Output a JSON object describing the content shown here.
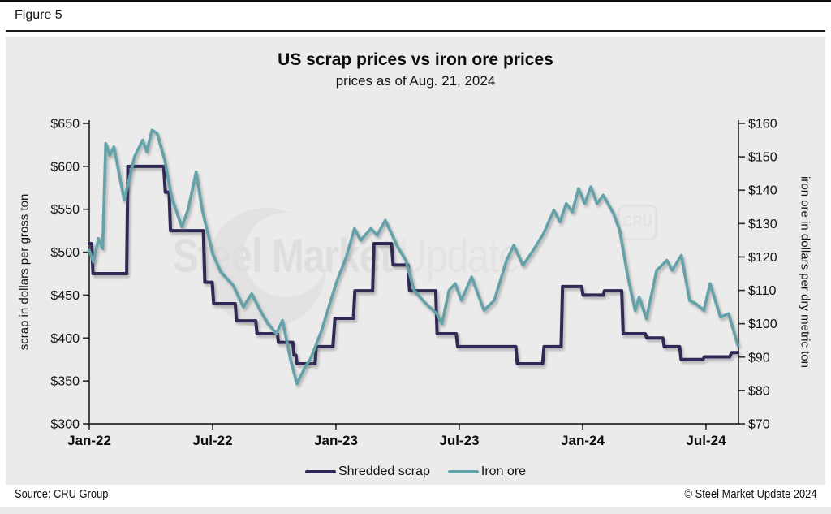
{
  "window": {
    "figure_label": "Figure 5"
  },
  "footer": {
    "source": "Source: CRU Group",
    "copyright": "© Steel Market Update 2024"
  },
  "watermark": {
    "text_bold": "Steel Market",
    "text_light": "Update",
    "badge": "CRU"
  },
  "chart_data": {
    "type": "line",
    "title": "US scrap prices vs iron ore prices",
    "subtitle": "prices as of Aug. 21, 2024",
    "x_unit": "months since Jan-2022",
    "x_axis": {
      "tick_labels": [
        "Jan-22",
        "Jul-22",
        "Jan-23",
        "Jul-23",
        "Jan-24",
        "Jul-24"
      ],
      "tick_months": [
        0,
        6,
        12,
        18,
        24,
        30
      ],
      "range_months": [
        0,
        31.6
      ]
    },
    "left_axis": {
      "label": "scrap in dollars per gross ton",
      "tick_labels": [
        "$300",
        "$350",
        "$400",
        "$450",
        "$500",
        "$550",
        "$600",
        "$650"
      ],
      "tick_values": [
        300,
        350,
        400,
        450,
        500,
        550,
        600,
        650
      ],
      "ylim": [
        300,
        650
      ]
    },
    "right_axis": {
      "label": "iron ore in dollars per dry metric ton",
      "tick_labels": [
        "$70",
        "$80",
        "$90",
        "$100",
        "$110",
        "$120",
        "$130",
        "$140",
        "$150",
        "$160"
      ],
      "tick_values": [
        70,
        80,
        90,
        100,
        110,
        120,
        130,
        140,
        150,
        160
      ],
      "ylim": [
        70,
        160
      ]
    },
    "grid": false,
    "legend_position": "bottom-center",
    "series": [
      {
        "name": "Shredded scrap",
        "axis": "left",
        "color": "#2e2a55",
        "stroke_width": 4,
        "points": [
          [
            0,
            510
          ],
          [
            0.12,
            510
          ],
          [
            0.18,
            475
          ],
          [
            1.82,
            475
          ],
          [
            1.88,
            600
          ],
          [
            3.62,
            600
          ],
          [
            3.7,
            570
          ],
          [
            3.88,
            570
          ],
          [
            3.95,
            525
          ],
          [
            5.55,
            525
          ],
          [
            5.62,
            465
          ],
          [
            5.98,
            465
          ],
          [
            6.05,
            440
          ],
          [
            7.1,
            440
          ],
          [
            7.16,
            420
          ],
          [
            8.1,
            420
          ],
          [
            8.16,
            405
          ],
          [
            9.15,
            405
          ],
          [
            9.2,
            395
          ],
          [
            9.9,
            395
          ],
          [
            9.96,
            380
          ],
          [
            10.05,
            380
          ],
          [
            10.1,
            370
          ],
          [
            10.98,
            370
          ],
          [
            11.04,
            390
          ],
          [
            11.85,
            390
          ],
          [
            11.95,
            423
          ],
          [
            12.85,
            423
          ],
          [
            12.92,
            455
          ],
          [
            13.78,
            455
          ],
          [
            13.85,
            510
          ],
          [
            14.7,
            510
          ],
          [
            14.78,
            485
          ],
          [
            15.5,
            485
          ],
          [
            15.58,
            455
          ],
          [
            16.85,
            455
          ],
          [
            16.92,
            405
          ],
          [
            17.85,
            405
          ],
          [
            17.92,
            390
          ],
          [
            20.75,
            390
          ],
          [
            20.82,
            370
          ],
          [
            22.05,
            370
          ],
          [
            22.12,
            390
          ],
          [
            22.95,
            390
          ],
          [
            23.02,
            460
          ],
          [
            23.95,
            460
          ],
          [
            24.02,
            450
          ],
          [
            25.0,
            450
          ],
          [
            25.06,
            455
          ],
          [
            25.9,
            455
          ],
          [
            25.97,
            405
          ],
          [
            27.05,
            405
          ],
          [
            27.12,
            400
          ],
          [
            27.9,
            400
          ],
          [
            27.97,
            390
          ],
          [
            28.72,
            390
          ],
          [
            28.79,
            375
          ],
          [
            29.85,
            375
          ],
          [
            29.92,
            378
          ],
          [
            31.15,
            378
          ],
          [
            31.25,
            383
          ],
          [
            31.55,
            383
          ]
        ]
      },
      {
        "name": "Iron ore",
        "axis": "right",
        "color": "#64a2aa",
        "stroke_width": 3.6,
        "points": [
          [
            0,
            122
          ],
          [
            0.2,
            118.5
          ],
          [
            0.45,
            125.5
          ],
          [
            0.65,
            122.5
          ],
          [
            0.8,
            154
          ],
          [
            1.0,
            150.5
          ],
          [
            1.2,
            153
          ],
          [
            1.7,
            137
          ],
          [
            2.2,
            150
          ],
          [
            2.6,
            155
          ],
          [
            2.8,
            151.5
          ],
          [
            3.05,
            158
          ],
          [
            3.3,
            157
          ],
          [
            3.67,
            149
          ],
          [
            4.0,
            138
          ],
          [
            4.5,
            129
          ],
          [
            4.8,
            134
          ],
          [
            5.2,
            145.5
          ],
          [
            5.5,
            134
          ],
          [
            6.0,
            121
          ],
          [
            6.4,
            115.5
          ],
          [
            7.0,
            111.5
          ],
          [
            7.5,
            105
          ],
          [
            7.9,
            109
          ],
          [
            8.4,
            103
          ],
          [
            8.7,
            100
          ],
          [
            9.1,
            97
          ],
          [
            9.4,
            101
          ],
          [
            9.8,
            89
          ],
          [
            10.1,
            82
          ],
          [
            10.5,
            87
          ],
          [
            10.8,
            90
          ],
          [
            11.3,
            98
          ],
          [
            12.0,
            112
          ],
          [
            12.5,
            120
          ],
          [
            12.9,
            128.5
          ],
          [
            13.2,
            125
          ],
          [
            13.7,
            128.5
          ],
          [
            14.0,
            126.5
          ],
          [
            14.4,
            131
          ],
          [
            15.0,
            123
          ],
          [
            15.4,
            119
          ],
          [
            15.8,
            110
          ],
          [
            16.3,
            106.5
          ],
          [
            16.9,
            103
          ],
          [
            17.15,
            100
          ],
          [
            17.5,
            110
          ],
          [
            17.8,
            112
          ],
          [
            18.1,
            107
          ],
          [
            18.6,
            114
          ],
          [
            19.2,
            104
          ],
          [
            19.7,
            107
          ],
          [
            20.3,
            119
          ],
          [
            20.65,
            123.5
          ],
          [
            21.1,
            117.5
          ],
          [
            21.6,
            122
          ],
          [
            22.1,
            127
          ],
          [
            22.6,
            134
          ],
          [
            22.9,
            130.5
          ],
          [
            23.2,
            136
          ],
          [
            23.5,
            133.5
          ],
          [
            23.8,
            140.5
          ],
          [
            24.1,
            136
          ],
          [
            24.4,
            141
          ],
          [
            24.7,
            136
          ],
          [
            25.0,
            138.5
          ],
          [
            25.5,
            133
          ],
          [
            25.8,
            128
          ],
          [
            26.2,
            114
          ],
          [
            26.55,
            104
          ],
          [
            26.75,
            108
          ],
          [
            27.1,
            101.5
          ],
          [
            27.6,
            116
          ],
          [
            28.1,
            119
          ],
          [
            28.35,
            116
          ],
          [
            28.8,
            120.5
          ],
          [
            29.2,
            107
          ],
          [
            29.5,
            106
          ],
          [
            29.9,
            104
          ],
          [
            30.2,
            112
          ],
          [
            30.7,
            102
          ],
          [
            31.1,
            103
          ],
          [
            31.55,
            93.5
          ]
        ]
      }
    ]
  }
}
